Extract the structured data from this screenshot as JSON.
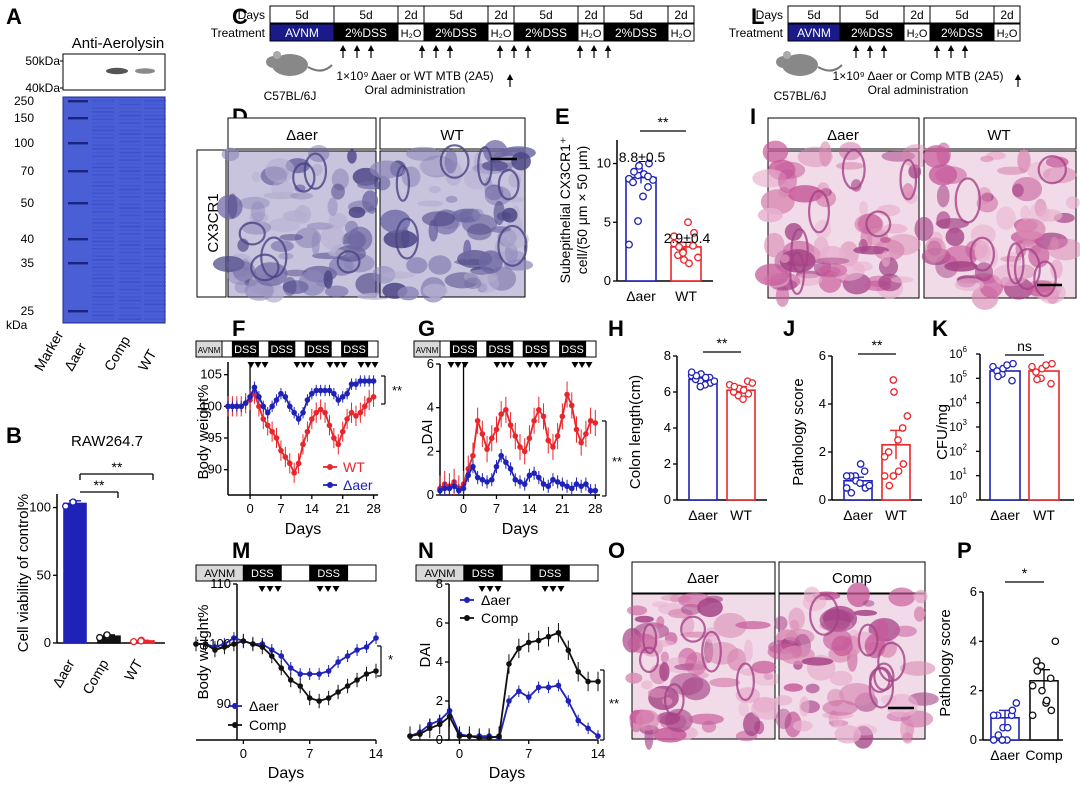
{
  "figure": {
    "colors": {
      "red": "#e8262b",
      "blue": "#1f22b8",
      "black": "#111111",
      "avnm": "#1a1a8a",
      "dss": "#000000",
      "gel": "#4a5fd6",
      "gelDark": "#2f43c4",
      "he": "#d98ab3",
      "ihc": "#8c86b8"
    },
    "panel_letters": [
      "A",
      "B",
      "C",
      "D",
      "E",
      "F",
      "G",
      "H",
      "I",
      "J",
      "K",
      "L",
      "M",
      "N",
      "O",
      "P"
    ],
    "A": {
      "title": "Anti-Aerolysin",
      "mw_top": [
        "50kDa",
        "40kDa"
      ],
      "mw_ladder": [
        "250",
        "150",
        "100",
        "70",
        "50",
        "40",
        "35",
        "25"
      ],
      "kda": "kDa",
      "lanes": [
        "Marker",
        "Δaer",
        "Comp",
        "WT"
      ]
    },
    "B": {
      "title": "RAW264.7",
      "ylabel": "Cell viability of control%",
      "sig": [
        "**",
        "**"
      ]
    },
    "C": {
      "days_label": "Days",
      "treatment_label": "Treatment",
      "days": [
        "5d",
        "5d",
        "2d",
        "5d",
        "2d",
        "5d",
        "2d",
        "5d",
        "2d"
      ],
      "treatments": [
        "AVNM",
        "2%DSS",
        "H₂O",
        "2%DSS",
        "H₂O",
        "2%DSS",
        "H₂O",
        "2%DSS",
        "H₂O"
      ],
      "mouse": "C57BL/6J",
      "note_line1": "1×10⁹ Δaer or WT MTB (2A5)",
      "note_line2": "Oral administration"
    },
    "L": {
      "days_label": "Days",
      "treatment_label": "Treatment",
      "days": [
        "5d",
        "5d",
        "2d",
        "5d",
        "2d"
      ],
      "treatments": [
        "AVNM",
        "2%DSS",
        "H₂O",
        "2%DSS",
        "H₂O"
      ],
      "mouse": "C57BL/6J",
      "note_line1": "1×10⁹ Δaer or Comp MTB (2A5)",
      "note_line2": "Oral administration"
    },
    "D": {
      "cols": [
        "Δaer",
        "WT"
      ],
      "row": "CX3CR1"
    },
    "E": {
      "ylabel1": "Subepithelial  CX3CR1⁺",
      "ylabel2": "cell/(50 μm × 50 μm)",
      "label_aer": "8.8±0.5",
      "label_wt": "2.9±0.4",
      "sig": "**"
    },
    "I": {
      "cols": [
        "Δaer",
        "WT"
      ]
    },
    "O": {
      "cols": [
        "Δaer",
        "Comp"
      ]
    },
    "F": {
      "ylabel": "Body weight%",
      "xlabel": "Days",
      "bar": [
        "AVNM",
        "DSS",
        "DSS",
        "DSS",
        "DSS"
      ],
      "legend": [
        "WT",
        "Δaer"
      ],
      "sig": "**"
    },
    "G": {
      "ylabel": "DAI",
      "xlabel": "Days",
      "bar": [
        "AVNM",
        "DSS",
        "DSS",
        "DSS",
        "DSS"
      ],
      "sig": "**"
    },
    "H": {
      "ylabel": "Colon length(cm)",
      "sig": "**"
    },
    "J": {
      "ylabel": "Pathology score",
      "sig": "**"
    },
    "K": {
      "ylabel": "CFU/mg",
      "sig": "ns"
    },
    "M": {
      "ylabel": "Body weight%",
      "xlabel": "Days",
      "bar": [
        "AVNM",
        "DSS",
        "DSS"
      ],
      "legend": [
        "Δaer",
        "Comp"
      ],
      "sig": "*"
    },
    "N": {
      "ylabel": "DAI",
      "xlabel": "Days",
      "bar": [
        "AVNM",
        "DSS",
        "DSS"
      ],
      "legend": [
        "Δaer",
        "Comp"
      ],
      "sig": "**"
    },
    "P": {
      "ylabel": "Pathology score",
      "sig": "*"
    }
  },
  "chart_data": [
    {
      "id": "B",
      "type": "bar",
      "title": "RAW264.7",
      "ylabel": "Cell viability of control%",
      "categories": [
        "Δaer",
        "Comp",
        "WT"
      ],
      "values": [
        103,
        5,
        1.5
      ],
      "errors": [
        2,
        1,
        0.5
      ],
      "ylim": [
        0,
        110
      ],
      "yticks": [
        0,
        50,
        100
      ],
      "points": [
        [
          101,
          104,
          104
        ],
        [
          4,
          5,
          6
        ],
        [
          1,
          2,
          1.5
        ]
      ]
    },
    {
      "id": "E",
      "type": "bar",
      "ylabel": "Subepithelial CX3CR1⁺ cell/(50 μm × 50 μm)",
      "categories": [
        "Δaer",
        "WT"
      ],
      "values": [
        8.8,
        2.9
      ],
      "errors": [
        0.5,
        0.4
      ],
      "ylim": [
        0,
        12
      ],
      "yticks": [
        0,
        5,
        10
      ],
      "points": [
        [
          8.7,
          9.0,
          9.5,
          8.0,
          10,
          8.4,
          9.3,
          7.2,
          9.1,
          8.6,
          3.1,
          5.1,
          9.8,
          8.9
        ],
        [
          3.2,
          2.5,
          1.8,
          3.0,
          4.1,
          2.2,
          2.9,
          5.0,
          1.5,
          2.0,
          3.8,
          2.4
        ]
      ]
    },
    {
      "id": "F",
      "type": "line",
      "xlabel": "Days",
      "ylabel": "Body weight%",
      "xlim": [
        -5,
        29
      ],
      "ylim": [
        86,
        107
      ],
      "xticks": [
        0,
        7,
        14,
        21,
        28
      ],
      "yticks": [
        90,
        95,
        100,
        105
      ],
      "x": [
        -5,
        -4,
        -3,
        -2,
        -1,
        0,
        1,
        2,
        3,
        4,
        5,
        6,
        7,
        8,
        9,
        10,
        11,
        12,
        13,
        14,
        15,
        16,
        17,
        18,
        19,
        20,
        21,
        22,
        23,
        24,
        25,
        26,
        27,
        28
      ],
      "series": [
        {
          "name": "WT",
          "values": [
            100,
            100,
            100,
            100,
            100.5,
            101,
            102,
            100,
            98,
            97,
            96,
            95,
            93,
            92,
            91,
            89.5,
            91,
            94,
            96,
            98,
            99,
            99.5,
            99,
            97,
            95,
            94,
            96,
            98,
            99,
            98.5,
            99,
            100,
            101,
            101.5
          ],
          "err": 1.6
        },
        {
          "name": "Δaer",
          "values": [
            100,
            100,
            100,
            100,
            100.5,
            101.5,
            103,
            101.5,
            100,
            99,
            100,
            101,
            102,
            101.5,
            100,
            99,
            98,
            99,
            101,
            102,
            102.5,
            102.5,
            102.5,
            102.5,
            102,
            101,
            101.5,
            102,
            103.5,
            103.5,
            104,
            104,
            104,
            104
          ],
          "err": 0.9
        }
      ]
    },
    {
      "id": "G",
      "type": "line",
      "xlabel": "Days",
      "ylabel": "DAI",
      "xlim": [
        -5,
        29
      ],
      "ylim": [
        0,
        6
      ],
      "xticks": [
        0,
        7,
        14,
        21,
        28
      ],
      "yticks": [
        0,
        2,
        4,
        6
      ],
      "x": [
        -5,
        -4,
        -3,
        -2,
        -1,
        0,
        1,
        2,
        3,
        4,
        5,
        6,
        7,
        8,
        9,
        10,
        11,
        12,
        13,
        14,
        15,
        16,
        17,
        18,
        19,
        20,
        21,
        22,
        23,
        24,
        25,
        26,
        27,
        28
      ],
      "series": [
        {
          "name": "WT",
          "values": [
            0.3,
            0.5,
            0.4,
            0.6,
            0.3,
            0.5,
            1.2,
            1.8,
            3.4,
            2.8,
            2.1,
            2.6,
            3.0,
            3.7,
            3.9,
            3.2,
            2.7,
            2.2,
            2.0,
            2.6,
            3.4,
            3.9,
            3.6,
            2.5,
            2.2,
            2.7,
            3.6,
            4.6,
            4.1,
            3.0,
            2.4,
            2.8,
            3.4,
            3.3
          ],
          "err": 0.6
        },
        {
          "name": "Δaer",
          "values": [
            0.2,
            0.3,
            0.3,
            0.4,
            0.2,
            0.3,
            0.9,
            1.3,
            0.8,
            0.7,
            0.6,
            0.7,
            1.3,
            1.8,
            1.5,
            1.2,
            0.7,
            0.6,
            0.5,
            0.9,
            1.0,
            0.8,
            0.5,
            0.4,
            0.7,
            0.6,
            0.5,
            0.4,
            0.3,
            0.5,
            0.4,
            0.5,
            0.2,
            0.2
          ],
          "err": 0.3
        }
      ]
    },
    {
      "id": "H",
      "type": "bar",
      "ylabel": "Colon length(cm)",
      "categories": [
        "Δaer",
        "WT"
      ],
      "values": [
        6.7,
        6.1
      ],
      "errors": [
        0.1,
        0.2
      ],
      "ylim": [
        0,
        8
      ],
      "yticks": [
        0,
        2,
        4,
        6,
        8
      ],
      "points": [
        [
          6.9,
          6.6,
          7.0,
          6.8,
          6.5,
          6.7,
          6.9,
          6.4,
          6.8,
          6.6,
          7.1,
          6.3
        ],
        [
          6.4,
          5.8,
          6.2,
          6.6,
          5.9,
          6.0,
          6.3,
          5.6,
          6.1,
          6.5
        ]
      ]
    },
    {
      "id": "J",
      "type": "bar",
      "ylabel": "Pathology score",
      "categories": [
        "Δaer",
        "WT"
      ],
      "values": [
        0.8,
        2.3
      ],
      "errors": [
        0.15,
        0.6
      ],
      "ylim": [
        0,
        6
      ],
      "yticks": [
        0,
        2,
        4,
        6
      ],
      "points": [
        [
          0.5,
          1.0,
          0.8,
          1.2,
          0.5,
          1.0,
          0.3,
          0.7,
          1.5,
          0.6,
          1.0
        ],
        [
          1.0,
          5.0,
          4.5,
          3.0,
          1.5,
          2.0,
          0.6,
          2.5,
          1.2,
          3.5,
          1.8,
          1.0
        ]
      ]
    },
    {
      "id": "K",
      "type": "bar",
      "ylabel": "CFU/mg",
      "scale": "log",
      "categories": [
        "Δaer",
        "WT"
      ],
      "values": [
        200000,
        200000
      ],
      "ylim": [
        1,
        1000000
      ],
      "yticks": [
        1,
        10,
        100,
        1000,
        10000,
        100000,
        1000000
      ],
      "points": [
        [
          300000,
          150000,
          250000,
          80000,
          400000,
          200000,
          120000,
          350000
        ],
        [
          300000,
          100000,
          250000,
          60000,
          400000,
          180000,
          90000,
          350000
        ]
      ]
    },
    {
      "id": "M",
      "type": "line",
      "xlabel": "Days",
      "ylabel": "Body weight%",
      "xlim": [
        -5,
        14
      ],
      "ylim": [
        84,
        110
      ],
      "xticks": [
        0,
        7,
        14
      ],
      "yticks": [
        90,
        100,
        110
      ],
      "x": [
        -5,
        -4,
        -3,
        -2,
        -1,
        0,
        1,
        2,
        3,
        4,
        5,
        6,
        7,
        8,
        9,
        10,
        11,
        12,
        13,
        14
      ],
      "series": [
        {
          "name": "Δaer",
          "values": [
            100,
            100,
            99.5,
            100,
            101,
            100.5,
            100,
            100,
            99,
            98,
            96,
            95,
            95,
            95,
            95.5,
            97,
            98,
            99,
            99.5,
            101
          ],
          "err": 1.0
        },
        {
          "name": "Comp",
          "values": [
            100,
            100,
            99,
            99.5,
            100,
            100.5,
            100,
            99.5,
            98,
            96,
            94,
            93,
            91,
            90.5,
            91,
            92,
            93,
            94,
            95,
            95.5
          ],
          "err": 1.2
        }
      ]
    },
    {
      "id": "N",
      "type": "line",
      "xlabel": "Days",
      "ylabel": "DAI",
      "xlim": [
        -5,
        14
      ],
      "ylim": [
        0,
        8
      ],
      "xticks": [
        0,
        7,
        14
      ],
      "yticks": [
        0,
        2,
        4,
        6,
        8
      ],
      "x": [
        -5,
        -4,
        -3,
        -2,
        -1,
        0,
        1,
        2,
        3,
        4,
        5,
        6,
        7,
        8,
        9,
        10,
        11,
        12,
        13,
        14
      ],
      "series": [
        {
          "name": "Δaer",
          "values": [
            0.2,
            0.4,
            0.8,
            1.0,
            1.5,
            0.3,
            0.2,
            0.2,
            0.2,
            0.1,
            2.0,
            2.5,
            2.2,
            2.7,
            2.7,
            2.8,
            2.0,
            1.0,
            0.6,
            0.2
          ],
          "err": 0.3
        },
        {
          "name": "Comp",
          "values": [
            0.2,
            0.3,
            0.6,
            0.8,
            1.2,
            0.2,
            0.2,
            0.1,
            0.1,
            0.2,
            3.9,
            4.7,
            5.0,
            5.1,
            5.3,
            5.5,
            4.6,
            3.5,
            3.0,
            3.0
          ],
          "err": 0.5
        }
      ]
    },
    {
      "id": "P",
      "type": "bar",
      "ylabel": "Pathology score",
      "categories": [
        "Δaer",
        "Comp"
      ],
      "values": [
        0.9,
        2.4
      ],
      "errors": [
        0.3,
        0.45
      ],
      "ylim": [
        0,
        6
      ],
      "yticks": [
        0,
        2,
        4,
        6
      ],
      "points": [
        [
          0,
          0,
          0.5,
          1.0,
          1.2,
          1.0,
          0.2,
          0,
          0.5,
          1.5,
          1.0,
          0
        ],
        [
          1.0,
          3.0,
          2.0,
          2.5,
          1.2,
          3.2,
          2.8,
          1.5,
          1.6,
          4.0,
          2.2
        ]
      ]
    }
  ]
}
